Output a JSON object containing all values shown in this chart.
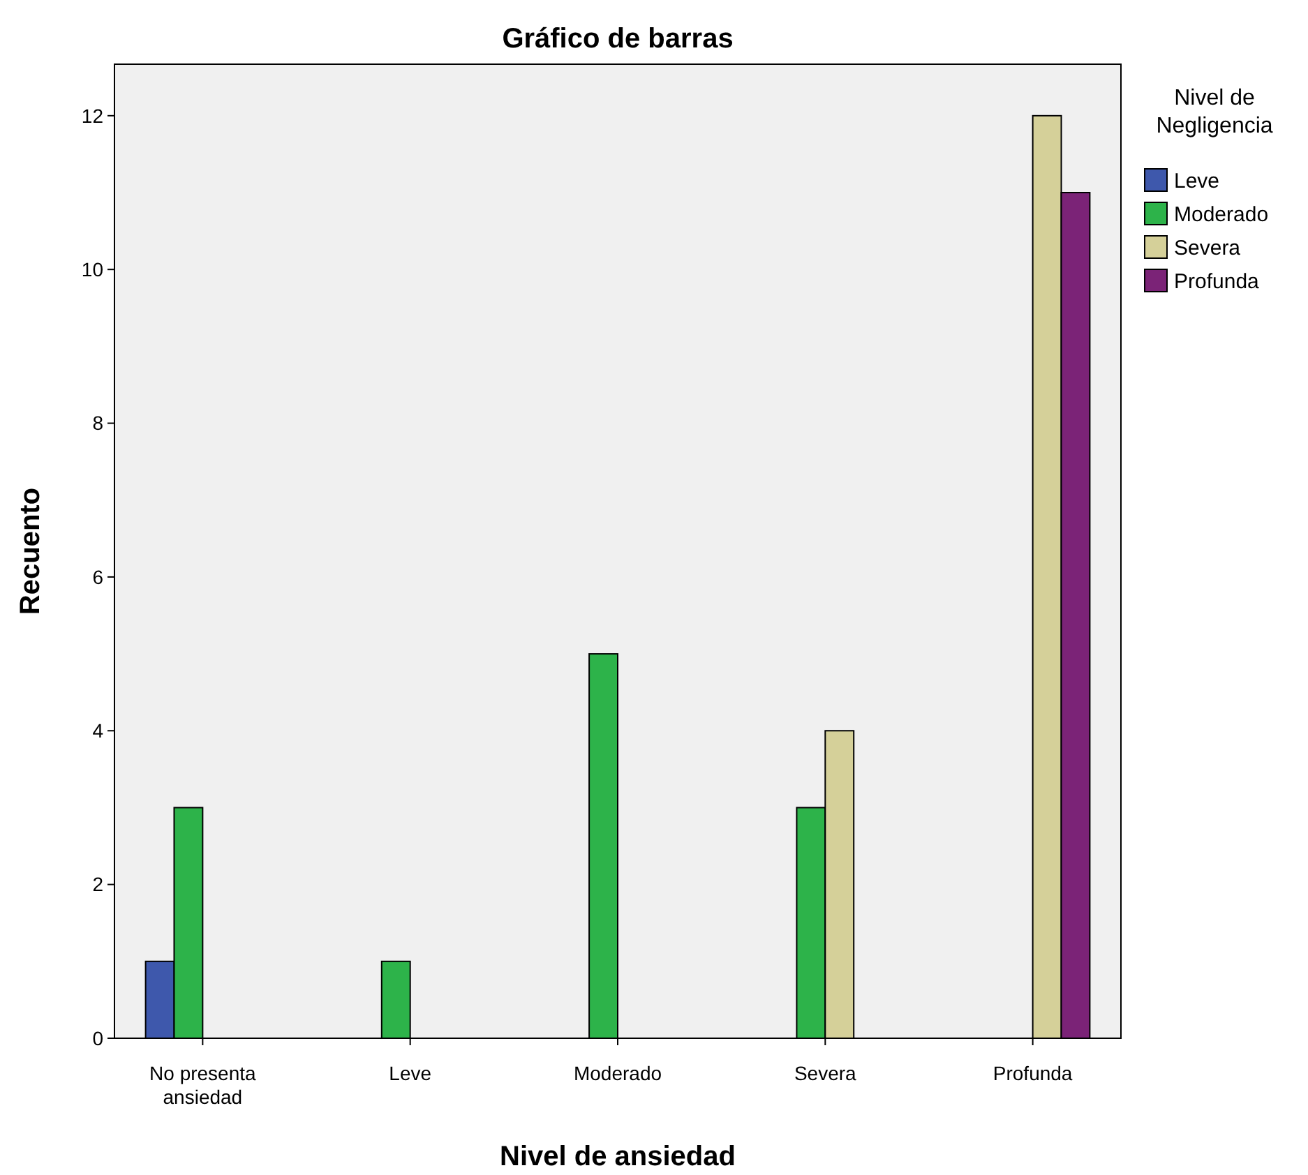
{
  "chart_data": {
    "type": "bar",
    "title": "Gráfico de barras",
    "xlabel": "Nivel de ansiedad",
    "ylabel": "Recuento",
    "legend_title": "Nivel de Negligencia",
    "categories": [
      "No presenta ansiedad",
      "Leve",
      "Moderado",
      "Severa",
      "Profunda"
    ],
    "series": [
      {
        "name": "Leve",
        "color": "#3e58ac",
        "values": [
          1,
          null,
          null,
          null,
          null
        ]
      },
      {
        "name": "Moderado",
        "color": "#2db34a",
        "values": [
          3,
          1,
          5,
          3,
          null
        ]
      },
      {
        "name": "Severa",
        "color": "#d5d099",
        "values": [
          null,
          null,
          null,
          4,
          12
        ]
      },
      {
        "name": "Profunda",
        "color": "#7b2377",
        "values": [
          null,
          null,
          null,
          null,
          11
        ]
      }
    ],
    "ylim": [
      0,
      12.67
    ],
    "yticks": [
      0,
      2,
      4,
      6,
      8,
      10,
      12
    ],
    "grid": false,
    "legend": "right"
  }
}
